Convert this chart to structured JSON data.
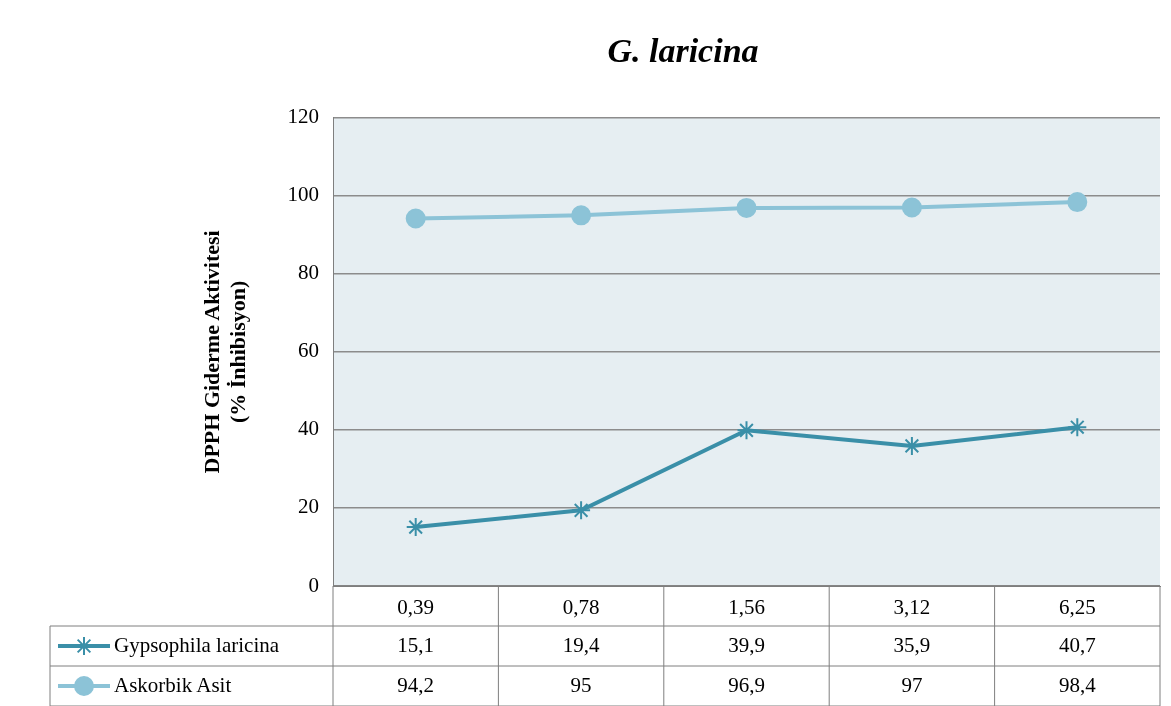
{
  "chart_data": {
    "type": "line",
    "title": "G. laricina",
    "ylabel": "DPPH Giderme Aktivitesi\n(% İnhibisyon)",
    "categories": [
      "0,39",
      "0,78",
      "1,56",
      "3,12",
      "6,25"
    ],
    "series": [
      {
        "name": "Gypsophila laricina",
        "color": "#3a8fa8",
        "marker": "cross",
        "values": [
          15.1,
          19.4,
          39.9,
          35.9,
          40.7
        ],
        "value_labels": [
          "15,1",
          "19,4",
          "39,9",
          "35,9",
          "40,7"
        ]
      },
      {
        "name": "Askorbik Asit",
        "color": "#8cc3d7",
        "marker": "circle",
        "values": [
          94.2,
          95,
          96.9,
          97,
          98.4
        ],
        "value_labels": [
          "94,2",
          "95",
          "96,9",
          "97",
          "98,4"
        ]
      }
    ],
    "ylim": [
      0,
      120
    ],
    "yticks": [
      0,
      20,
      40,
      60,
      80,
      100,
      120
    ],
    "grid": "y",
    "legend": "bottom",
    "line_style": "solid"
  }
}
